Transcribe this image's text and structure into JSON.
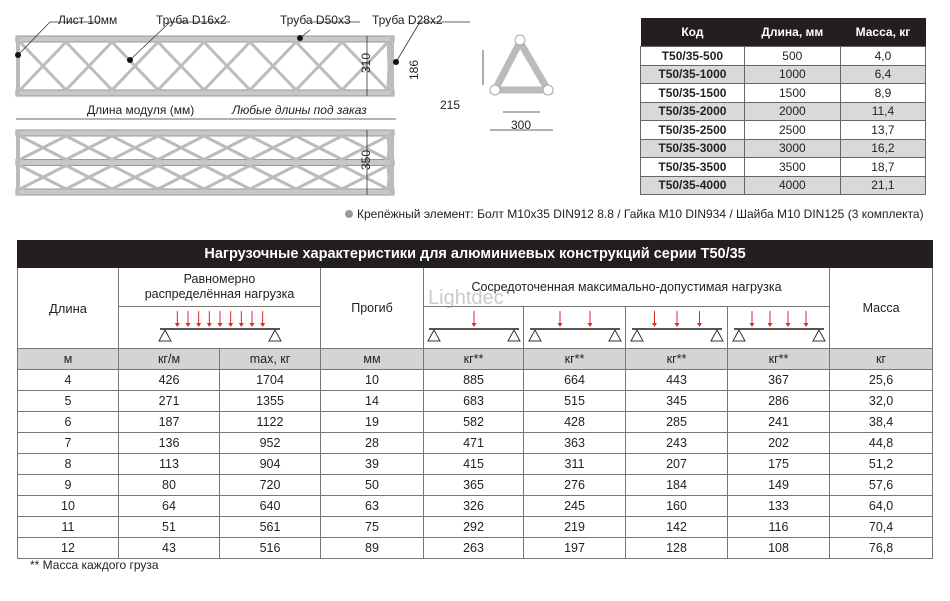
{
  "drawing": {
    "labels": {
      "sheet": "Лист 10мм",
      "tube_small": "Труба D16x2",
      "tube_main": "Труба D50x3",
      "tube_mid": "Труба D28x2"
    },
    "height_side": "310",
    "height_front": "350",
    "module_length": "Длина модуля (мм)",
    "any_length": "Любые длины под заказ",
    "section": {
      "height": "186",
      "inner_width": "215",
      "outer_width": "300"
    }
  },
  "fastener_note": "Крепёжный элемент: Болт М10x35 DIN912 8.8 / Гайка М10 DIN934 / Шайба М10 DIN125 (3 комплекта)",
  "spec_table": {
    "headers": [
      "Код",
      "Длина, мм",
      "Масса, кг"
    ],
    "rows": [
      [
        "T50/35-500",
        "500",
        "4,0"
      ],
      [
        "T50/35-1000",
        "1000",
        "6,4"
      ],
      [
        "T50/35-1500",
        "1500",
        "8,9"
      ],
      [
        "T50/35-2000",
        "2000",
        "11,4"
      ],
      [
        "T50/35-2500",
        "2500",
        "13,7"
      ],
      [
        "T50/35-3000",
        "3000",
        "16,2"
      ],
      [
        "T50/35-3500",
        "3500",
        "18,7"
      ],
      [
        "T50/35-4000",
        "4000",
        "21,1"
      ]
    ]
  },
  "load_table": {
    "title": "Нагрузочные характеристики для алюминиевых конструкций серии T50/35",
    "h_length": "Длина",
    "h_uniform": "Равномерно распределённая нагрузка",
    "h_deflection": "Прогиб",
    "h_point": "Сосредоточенная максимально-допустимая нагрузка",
    "h_mass": "Масса",
    "units": [
      "м",
      "кг/м",
      "max, кг",
      "мм",
      "кг**",
      "кг**",
      "кг**",
      "кг**",
      "кг"
    ],
    "rows": [
      [
        "4",
        "426",
        "1704",
        "10",
        "885",
        "664",
        "443",
        "367",
        "25,6"
      ],
      [
        "5",
        "271",
        "1355",
        "14",
        "683",
        "515",
        "345",
        "286",
        "32,0"
      ],
      [
        "6",
        "187",
        "1122",
        "19",
        "582",
        "428",
        "285",
        "241",
        "38,4"
      ],
      [
        "7",
        "136",
        "952",
        "28",
        "471",
        "363",
        "243",
        "202",
        "44,8"
      ],
      [
        "8",
        "113",
        "904",
        "39",
        "415",
        "311",
        "207",
        "175",
        "51,2"
      ],
      [
        "9",
        "80",
        "720",
        "50",
        "365",
        "276",
        "184",
        "149",
        "57,6"
      ],
      [
        "10",
        "64",
        "640",
        "63",
        "326",
        "245",
        "160",
        "133",
        "64,0"
      ],
      [
        "11",
        "51",
        "561",
        "75",
        "292",
        "219",
        "142",
        "116",
        "70,4"
      ],
      [
        "12",
        "43",
        "516",
        "89",
        "263",
        "197",
        "128",
        "108",
        "76,8"
      ]
    ]
  },
  "footnote": "** Масса каждого груза",
  "watermark": "Lightdec",
  "colors": {
    "header_bg": "#231f20",
    "stripe": "#d9d9d9",
    "arrow": "#e0262d"
  }
}
